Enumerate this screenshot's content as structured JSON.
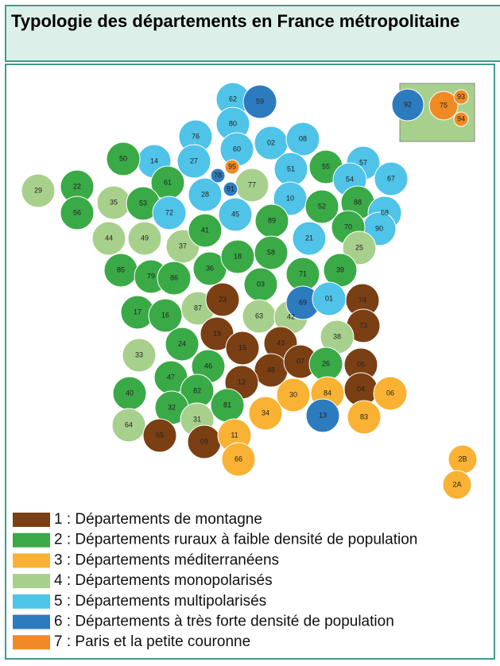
{
  "header": {
    "title": "Typologie des départements en France métropolitaine"
  },
  "legend": [
    {
      "label": "1 : Départements de montagne",
      "color": "#7b3f14"
    },
    {
      "label": "2 : Départements ruraux à faible densité de population",
      "color": "#3aaa47"
    },
    {
      "label": "3 : Départements méditerranéens",
      "color": "#f9b233"
    },
    {
      "label": "4 : Départements monopolarisés",
      "color": "#a8d08d"
    },
    {
      "label": "5 : Départements multipolarisés",
      "color": "#4fc3e8"
    },
    {
      "label": "6 : Départements à très forte densité de population",
      "color": "#2d7bbf"
    },
    {
      "label": "7 : Paris et la petite couronne",
      "color": "#f08a24"
    }
  ],
  "departments": [
    {
      "code": "62",
      "category": 5
    },
    {
      "code": "59",
      "category": 6
    },
    {
      "code": "80",
      "category": 5
    },
    {
      "code": "76",
      "category": 5
    },
    {
      "code": "02",
      "category": 5
    },
    {
      "code": "08",
      "category": 5
    },
    {
      "code": "60",
      "category": 5
    },
    {
      "code": "14",
      "category": 5
    },
    {
      "code": "27",
      "category": 5
    },
    {
      "code": "50",
      "category": 2
    },
    {
      "code": "51",
      "category": 5
    },
    {
      "code": "55",
      "category": 2
    },
    {
      "code": "57",
      "category": 5
    },
    {
      "code": "67",
      "category": 5
    },
    {
      "code": "54",
      "category": 5
    },
    {
      "code": "29",
      "category": 4
    },
    {
      "code": "22",
      "category": 2
    },
    {
      "code": "35",
      "category": 4
    },
    {
      "code": "61",
      "category": 2
    },
    {
      "code": "28",
      "category": 5
    },
    {
      "code": "77",
      "category": 4
    },
    {
      "code": "10",
      "category": 5
    },
    {
      "code": "52",
      "category": 2
    },
    {
      "code": "88",
      "category": 2
    },
    {
      "code": "68",
      "category": 5
    },
    {
      "code": "90",
      "category": 5
    },
    {
      "code": "56",
      "category": 2
    },
    {
      "code": "53",
      "category": 2
    },
    {
      "code": "72",
      "category": 5
    },
    {
      "code": "45",
      "category": 5
    },
    {
      "code": "89",
      "category": 2
    },
    {
      "code": "70",
      "category": 2
    },
    {
      "code": "44",
      "category": 4
    },
    {
      "code": "49",
      "category": 4
    },
    {
      "code": "37",
      "category": 4
    },
    {
      "code": "41",
      "category": 2
    },
    {
      "code": "21",
      "category": 5
    },
    {
      "code": "25",
      "category": 4
    },
    {
      "code": "85",
      "category": 2
    },
    {
      "code": "79",
      "category": 2
    },
    {
      "code": "86",
      "category": 2
    },
    {
      "code": "36",
      "category": 2
    },
    {
      "code": "18",
      "category": 2
    },
    {
      "code": "58",
      "category": 2
    },
    {
      "code": "71",
      "category": 2
    },
    {
      "code": "39",
      "category": 2
    },
    {
      "code": "03",
      "category": 2
    },
    {
      "code": "17",
      "category": 2
    },
    {
      "code": "16",
      "category": 2
    },
    {
      "code": "87",
      "category": 4
    },
    {
      "code": "23",
      "category": 1
    },
    {
      "code": "63",
      "category": 4
    },
    {
      "code": "42",
      "category": 4
    },
    {
      "code": "69",
      "category": 6
    },
    {
      "code": "01",
      "category": 5
    },
    {
      "code": "74",
      "category": 1
    },
    {
      "code": "73",
      "category": 1
    },
    {
      "code": "38",
      "category": 4
    },
    {
      "code": "19",
      "category": 1
    },
    {
      "code": "15",
      "category": 1
    },
    {
      "code": "43",
      "category": 1
    },
    {
      "code": "33",
      "category": 4
    },
    {
      "code": "24",
      "category": 2
    },
    {
      "code": "46",
      "category": 2
    },
    {
      "code": "48",
      "category": 1
    },
    {
      "code": "07",
      "category": 1
    },
    {
      "code": "26",
      "category": 2
    },
    {
      "code": "05",
      "category": 1
    },
    {
      "code": "04",
      "category": 1
    },
    {
      "code": "06",
      "category": 3
    },
    {
      "code": "47",
      "category": 2
    },
    {
      "code": "40",
      "category": 2
    },
    {
      "code": "82",
      "category": 2
    },
    {
      "code": "12",
      "category": 1
    },
    {
      "code": "84",
      "category": 3
    },
    {
      "code": "30",
      "category": 3
    },
    {
      "code": "83",
      "category": 3
    },
    {
      "code": "13",
      "category": 6
    },
    {
      "code": "81",
      "category": 2
    },
    {
      "code": "32",
      "category": 2
    },
    {
      "code": "34",
      "category": 3
    },
    {
      "code": "64",
      "category": 4
    },
    {
      "code": "31",
      "category": 4
    },
    {
      "code": "65",
      "category": 1
    },
    {
      "code": "09",
      "category": 1
    },
    {
      "code": "11",
      "category": 3
    },
    {
      "code": "66",
      "category": 3
    },
    {
      "code": "2B",
      "category": 3
    },
    {
      "code": "2A",
      "category": 3
    },
    {
      "code": "95",
      "category": 7
    },
    {
      "code": "78",
      "category": 6
    },
    {
      "code": "91",
      "category": 6
    }
  ],
  "inset": [
    {
      "code": "92",
      "category": 6
    },
    {
      "code": "75",
      "category": 7
    },
    {
      "code": "93",
      "category": 7
    },
    {
      "code": "94",
      "category": 7
    }
  ]
}
